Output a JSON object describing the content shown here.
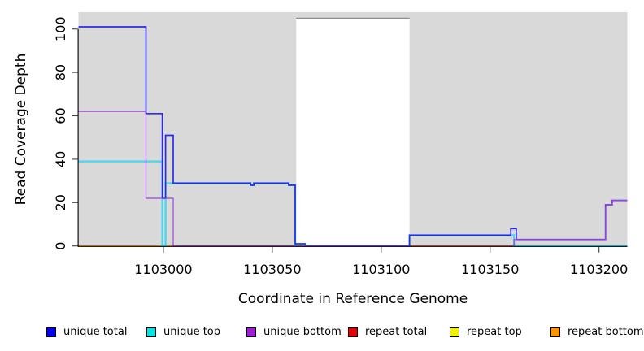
{
  "chart_data": {
    "type": "line",
    "step": true,
    "title": "",
    "xlabel": "Coordinate in Reference Genome",
    "ylabel": "Read Coverage Depth",
    "x_ticks": [
      1103000,
      1103050,
      1103100,
      1103150,
      1103200
    ],
    "y_ticks": [
      0,
      20,
      40,
      60,
      80,
      100
    ],
    "xlim": [
      1102961,
      1103213
    ],
    "ylim": [
      0,
      108
    ],
    "grid": false,
    "background_shading": {
      "color": "#d9d9d9",
      "shaded_regions": [
        [
          1102961,
          1103061
        ],
        [
          1103113,
          1103213
        ]
      ],
      "white_gap": {
        "from": 1103061,
        "to": 1103113,
        "top_value": 105,
        "border_color": "#8f8f8f"
      }
    },
    "series": [
      {
        "name": "unique total",
        "color": "#2b2bef",
        "width": 1.7,
        "points": [
          [
            1102961,
            101
          ],
          [
            1102992,
            101
          ],
          [
            1102992,
            61
          ],
          [
            1102999.5,
            61
          ],
          [
            1102999.5,
            22
          ],
          [
            1103001,
            22
          ],
          [
            1103001,
            51
          ],
          [
            1103004.5,
            51
          ],
          [
            1103004.5,
            29
          ],
          [
            1103040,
            29
          ],
          [
            1103040,
            28
          ],
          [
            1103041.5,
            28
          ],
          [
            1103041.5,
            29
          ],
          [
            1103057.5,
            29
          ],
          [
            1103057.5,
            28
          ],
          [
            1103060.5,
            28
          ],
          [
            1103060.5,
            1
          ],
          [
            1103065,
            1
          ],
          [
            1103065,
            0
          ],
          [
            1103113,
            0
          ],
          [
            1103113,
            5
          ],
          [
            1103159.5,
            5
          ],
          [
            1103159.5,
            8
          ],
          [
            1103162,
            8
          ],
          [
            1103162,
            3
          ],
          [
            1103203,
            3
          ],
          [
            1103203,
            19
          ],
          [
            1103206,
            19
          ],
          [
            1103206,
            21
          ],
          [
            1103213,
            21
          ]
        ]
      },
      {
        "name": "unique top",
        "color": "#45d6ec",
        "width": 2.2,
        "points": [
          [
            1102961,
            39
          ],
          [
            1102999.5,
            39
          ],
          [
            1102999.5,
            0
          ],
          [
            1103001,
            0
          ],
          [
            1103001,
            29
          ],
          [
            1103040,
            29
          ],
          [
            1103040,
            28
          ],
          [
            1103041.5,
            28
          ],
          [
            1103041.5,
            29
          ],
          [
            1103057.5,
            29
          ],
          [
            1103057.5,
            28
          ],
          [
            1103060.5,
            28
          ],
          [
            1103060.5,
            0
          ],
          [
            1103113,
            0
          ],
          [
            1103113,
            5
          ],
          [
            1103161,
            5
          ],
          [
            1103161,
            0
          ],
          [
            1103213,
            0
          ]
        ]
      },
      {
        "name": "unique bottom",
        "color": "#a23fe0",
        "width": 1.2,
        "points": [
          [
            1102961,
            62
          ],
          [
            1102992,
            62
          ],
          [
            1102992,
            22
          ],
          [
            1103004.5,
            22
          ],
          [
            1103004.5,
            0
          ],
          [
            1103113,
            0
          ],
          null,
          [
            1103161,
            0
          ],
          [
            1103161,
            3
          ],
          [
            1103203,
            3
          ],
          [
            1103203,
            19
          ],
          [
            1103206,
            19
          ],
          [
            1103206,
            21
          ],
          [
            1103213,
            21
          ]
        ]
      },
      {
        "name": "repeat total",
        "color": "#dd3355",
        "width": 1.2,
        "points": [
          [
            1102961,
            0
          ],
          [
            1103213,
            0
          ]
        ]
      },
      {
        "name": "repeat top",
        "color": "#e3e34a",
        "width": 1.2,
        "points": [
          [
            1102961,
            0
          ],
          [
            1103213,
            0
          ]
        ]
      },
      {
        "name": "repeat bottom",
        "color": "#ff9912",
        "width": 1.5,
        "points": [
          [
            1102961,
            0
          ],
          [
            1103006,
            0
          ]
        ]
      }
    ]
  },
  "legend": {
    "items": [
      {
        "label": "unique total",
        "color": "#0000ee"
      },
      {
        "label": "unique top",
        "color": "#00e6e6"
      },
      {
        "label": "unique bottom",
        "color": "#9c1fd3"
      },
      {
        "label": "repeat total",
        "color": "#e80000"
      },
      {
        "label": "repeat top",
        "color": "#f2f200"
      },
      {
        "label": "repeat bottom",
        "color": "#ff9400"
      }
    ]
  }
}
